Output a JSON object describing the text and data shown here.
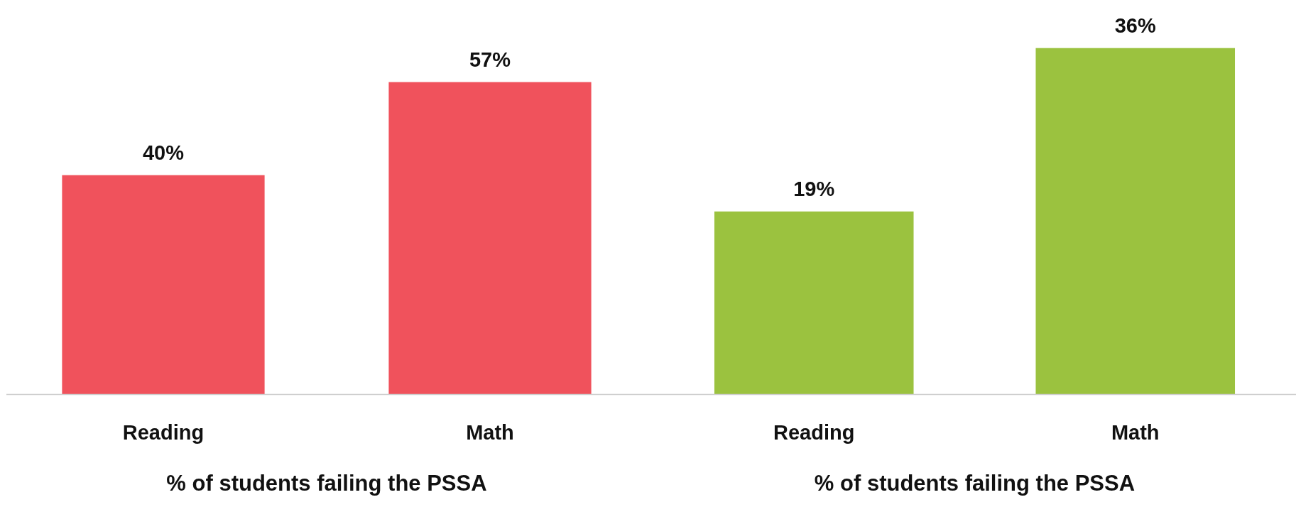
{
  "chart_data": [
    {
      "type": "bar",
      "categories": [
        "Reading",
        "Math"
      ],
      "values": [
        40,
        57
      ],
      "value_labels": [
        "40%",
        "57%"
      ],
      "colors": [
        "#f0525c",
        "#f0525c"
      ],
      "ylim": [
        0,
        72
      ],
      "xlabel": "% of students failing the PSSA"
    },
    {
      "type": "bar",
      "categories": [
        "Reading",
        "Math"
      ],
      "values": [
        19,
        36
      ],
      "value_labels": [
        "19%",
        "36%"
      ],
      "colors": [
        "#9bc23f",
        "#9bc23f"
      ],
      "ylim": [
        0,
        41
      ],
      "xlabel": "% of students failing the PSSA"
    }
  ]
}
